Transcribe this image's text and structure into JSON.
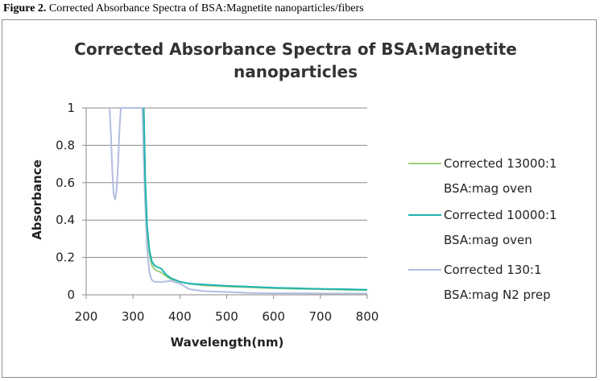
{
  "figure_caption": {
    "label": "Figure 2.",
    "text": " Corrected Absorbance Spectra of BSA:Magnetite nanoparticles/fibers"
  },
  "chart_data": {
    "type": "line",
    "title_line1": "Corrected Absorbance Spectra of BSA:Magnetite",
    "title_line2": "nanoparticles",
    "xlabel": "Wavelength(nm)",
    "ylabel": "Absorbance",
    "xlim": [
      200,
      800
    ],
    "ylim": [
      0,
      1
    ],
    "xticks": [
      200,
      300,
      400,
      500,
      600,
      700,
      800
    ],
    "yticks": [
      0,
      0.2,
      0.4,
      0.6,
      0.8,
      1
    ],
    "ytick_labels": [
      "0",
      "0.2",
      "0.4",
      "0.6",
      "0.8",
      "1"
    ],
    "grid": "horizontal",
    "legend_position": "right",
    "series": [
      {
        "name_line1": "Corrected 13000:1",
        "name_line2": "BSA:mag oven",
        "color": "#9bcf7a",
        "x": [
          323,
          326,
          330,
          335,
          340,
          345,
          350,
          360,
          370,
          380,
          400,
          420,
          450,
          500,
          550,
          600,
          650,
          700,
          750,
          800
        ],
        "y": [
          1.0,
          0.6,
          0.35,
          0.22,
          0.16,
          0.14,
          0.13,
          0.12,
          0.1,
          0.085,
          0.07,
          0.06,
          0.05,
          0.045,
          0.04,
          0.035,
          0.032,
          0.03,
          0.027,
          0.025
        ]
      },
      {
        "name_line1": "Corrected 10000:1",
        "name_line2": "BSA:mag oven",
        "color": "#1fb2b2",
        "x": [
          323,
          326,
          330,
          335,
          340,
          345,
          350,
          360,
          370,
          380,
          400,
          420,
          450,
          500,
          550,
          600,
          650,
          700,
          750,
          800
        ],
        "y": [
          1.0,
          0.62,
          0.37,
          0.24,
          0.18,
          0.16,
          0.15,
          0.14,
          0.11,
          0.09,
          0.07,
          0.06,
          0.055,
          0.048,
          0.043,
          0.038,
          0.035,
          0.032,
          0.03,
          0.027
        ]
      },
      {
        "name_line1": "Corrected 130:1",
        "name_line2": "BSA:mag N2 prep",
        "color": "#b3bde0",
        "x": [
          250,
          253,
          256,
          259,
          262,
          265,
          268,
          271,
          274,
          320,
          325,
          330,
          335,
          340,
          345,
          350,
          360,
          380,
          400,
          420,
          450,
          500,
          550,
          600,
          650,
          700,
          750,
          800
        ],
        "y": [
          1.0,
          0.85,
          0.65,
          0.53,
          0.51,
          0.56,
          0.7,
          0.88,
          1.0,
          1.0,
          0.55,
          0.25,
          0.12,
          0.08,
          0.07,
          0.07,
          0.068,
          0.075,
          0.06,
          0.03,
          0.02,
          0.015,
          0.01,
          0.008,
          0.008,
          0.007,
          0.007,
          0.007
        ]
      }
    ]
  }
}
